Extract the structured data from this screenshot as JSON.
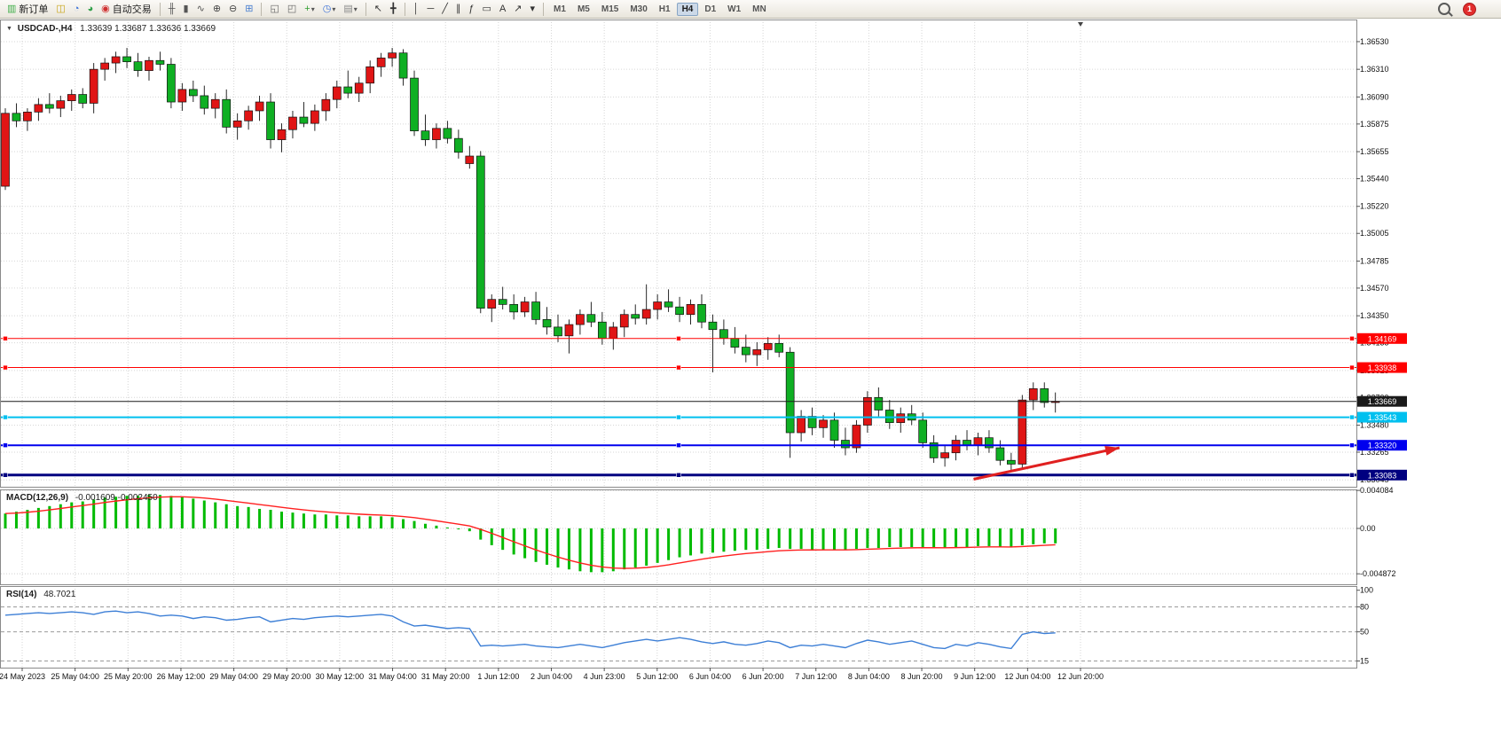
{
  "icons": {
    "symbol_dropdown": "▼",
    "dropdown_arrow": "▾"
  },
  "toolbar": {
    "notification_count": "1",
    "active_timeframe": "H4",
    "timeframes": [
      "M1",
      "M5",
      "M15",
      "M30",
      "H1",
      "H4",
      "D1",
      "W1",
      "MN"
    ],
    "items": [
      {
        "name": "new-order-button",
        "type": "button",
        "glyph": "▥",
        "glyph_color": "#3fae49",
        "label": "新订单"
      },
      {
        "name": "charts-grid-button",
        "type": "button",
        "glyph": "◫",
        "glyph_color": "#c8a416"
      },
      {
        "name": "market-watch-button",
        "type": "button",
        "glyph": "◔",
        "glyph_color": "#3a6fd8"
      },
      {
        "name": "community-button",
        "type": "button",
        "glyph": "◕",
        "glyph_color": "#31a04a"
      },
      {
        "name": "auto-trading-button",
        "type": "button",
        "glyph": "◉",
        "glyph_color": "#d03030",
        "label": "自动交易"
      },
      {
        "type": "sep"
      },
      {
        "name": "bars-chart-type-button",
        "type": "button",
        "glyph": "╫",
        "glyph_color": "#555555"
      },
      {
        "name": "candles-chart-type-button",
        "type": "button",
        "glyph": "▮",
        "glyph_color": "#555555"
      },
      {
        "name": "line-chart-type-button",
        "type": "button",
        "glyph": "∿",
        "glyph_color": "#555555"
      },
      {
        "name": "zoom-in-button",
        "type": "button",
        "glyph": "⊕",
        "glyph_color": "#444444"
      },
      {
        "name": "zoom-out-button",
        "type": "button",
        "glyph": "⊖",
        "glyph_color": "#444444"
      },
      {
        "name": "tile-windows-button",
        "type": "button",
        "glyph": "⊞",
        "glyph_color": "#4a7fd0"
      },
      {
        "type": "sep"
      },
      {
        "name": "auto-scroll-button",
        "type": "button",
        "glyph": "◱",
        "glyph_color": "#666666"
      },
      {
        "name": "chart-shift-button",
        "type": "button",
        "glyph": "◰",
        "glyph_color": "#666666"
      },
      {
        "name": "indicators-button",
        "type": "button",
        "glyph": "+",
        "glyph_color": "#2f9e2f",
        "dropdown": true
      },
      {
        "name": "periods-button",
        "type": "button",
        "glyph": "◷",
        "glyph_color": "#3a6fd8",
        "dropdown": true
      },
      {
        "name": "templates-button",
        "type": "button",
        "glyph": "▤",
        "glyph_color": "#888888",
        "dropdown": true
      },
      {
        "type": "sep"
      },
      {
        "name": "cursor-button",
        "type": "button",
        "glyph": "↖",
        "glyph_color": "#333333"
      },
      {
        "name": "crosshair-button",
        "type": "button",
        "glyph": "╋",
        "glyph_color": "#333333"
      },
      {
        "type": "sep"
      },
      {
        "name": "vertical-line-button",
        "type": "button",
        "glyph": "│",
        "glyph_color": "#333333"
      },
      {
        "name": "horizontal-line-button",
        "type": "button",
        "glyph": "─",
        "glyph_color": "#333333"
      },
      {
        "name": "trendline-button",
        "type": "button",
        "glyph": "╱",
        "glyph_color": "#333333"
      },
      {
        "name": "channel-button",
        "type": "button",
        "glyph": "∥",
        "glyph_color": "#333333"
      },
      {
        "name": "fibonacci-button",
        "type": "button",
        "glyph": "ƒ",
        "glyph_color": "#333333"
      },
      {
        "name": "shapes-button",
        "type": "button",
        "glyph": "▭",
        "glyph_color": "#333333"
      },
      {
        "name": "text-button",
        "type": "button",
        "glyph": "A",
        "glyph_color": "#333333"
      },
      {
        "name": "arrows-button",
        "type": "button",
        "glyph": "↗",
        "glyph_color": "#333333"
      },
      {
        "name": "objects-dropdown-button",
        "type": "button",
        "glyph": "▾",
        "glyph_color": "#333333"
      },
      {
        "type": "sep"
      },
      {
        "type": "timeframes"
      }
    ]
  },
  "chart_data": [
    {
      "type": "candlestick",
      "title": "USDCAD-,H4",
      "ohlc_display": "1.33639 1.33687 1.33636 1.33669",
      "up_color": "#e01515",
      "down_color": "#0faf23",
      "ylim": [
        1.3299,
        1.36706
      ],
      "y_axis_labels": [
        "1.36530",
        "1.36310",
        "1.36090",
        "1.35875",
        "1.35655",
        "1.35440",
        "1.35220",
        "1.35005",
        "1.34785",
        "1.34570",
        "1.34350",
        "1.34135",
        "1.33915",
        "1.33700",
        "1.33480",
        "1.33265",
        "1.33045"
      ],
      "x_labels": [
        "24 May 2023",
        "25 May 04:00",
        "25 May 20:00",
        "26 May 12:00",
        "29 May 04:00",
        "29 May 20:00",
        "30 May 12:00",
        "31 May 04:00",
        "31 May 20:00",
        "1 Jun 12:00",
        "2 Jun 04:00",
        "4 Jun 23:00",
        "5 Jun 12:00",
        "6 Jun 04:00",
        "6 Jun 20:00",
        "7 Jun 12:00",
        "8 Jun 04:00",
        "8 Jun 20:00",
        "9 Jun 12:00",
        "12 Jun 04:00",
        "12 Jun 20:00"
      ],
      "hlines": [
        {
          "label": "1.34169",
          "price": 1.34169,
          "color": "#ff0000",
          "width": 1,
          "handles": true
        },
        {
          "label": "1.33938",
          "price": 1.33938,
          "color": "#ff0000",
          "width": 1,
          "handles": true
        },
        {
          "label": "1.33669",
          "price": 1.33669,
          "color": "#1a1a1a",
          "width": 1,
          "handles": false,
          "role": "current-price"
        },
        {
          "label": "1.33543",
          "price": 1.33543,
          "color": "#00c0ef",
          "width": 2,
          "handles": true
        },
        {
          "label": "1.33320",
          "price": 1.3332,
          "color": "#0000ee",
          "width": 2,
          "handles": true
        },
        {
          "label": "1.33083",
          "price": 1.33083,
          "color": "#000080",
          "width": 3,
          "handles": true
        }
      ],
      "arrow": {
        "from_index": 87.6,
        "from_price": 1.3305,
        "to_index": 100.8,
        "to_price": 1.333,
        "color": "#e02020"
      },
      "candles": [
        [
          1.3538,
          1.36,
          1.3535,
          1.3596
        ],
        [
          1.3596,
          1.3604,
          1.3585,
          1.359
        ],
        [
          1.359,
          1.36,
          1.3582,
          1.3597
        ],
        [
          1.3597,
          1.3608,
          1.359,
          1.3603
        ],
        [
          1.3603,
          1.3612,
          1.3596,
          1.36
        ],
        [
          1.36,
          1.361,
          1.3593,
          1.3606
        ],
        [
          1.3606,
          1.3615,
          1.3598,
          1.3611
        ],
        [
          1.3611,
          1.3616,
          1.36,
          1.3604
        ],
        [
          1.3604,
          1.3636,
          1.3596,
          1.3631
        ],
        [
          1.3631,
          1.364,
          1.3622,
          1.3636
        ],
        [
          1.3636,
          1.3645,
          1.3628,
          1.3641
        ],
        [
          1.3641,
          1.3648,
          1.3632,
          1.3637
        ],
        [
          1.3637,
          1.3644,
          1.3625,
          1.363
        ],
        [
          1.363,
          1.3641,
          1.3622,
          1.3638
        ],
        [
          1.3638,
          1.3645,
          1.363,
          1.3635
        ],
        [
          1.3635,
          1.364,
          1.36,
          1.3605
        ],
        [
          1.3605,
          1.362,
          1.3598,
          1.3615
        ],
        [
          1.3615,
          1.3622,
          1.3605,
          1.361
        ],
        [
          1.361,
          1.3618,
          1.3595,
          1.36
        ],
        [
          1.36,
          1.3612,
          1.3592,
          1.3607
        ],
        [
          1.3607,
          1.3615,
          1.358,
          1.3585
        ],
        [
          1.3585,
          1.3596,
          1.3575,
          1.359
        ],
        [
          1.359,
          1.3602,
          1.3583,
          1.3598
        ],
        [
          1.3598,
          1.361,
          1.359,
          1.3605
        ],
        [
          1.3605,
          1.3612,
          1.3568,
          1.3575
        ],
        [
          1.3575,
          1.3588,
          1.3565,
          1.3583
        ],
        [
          1.3583,
          1.3598,
          1.3576,
          1.3593
        ],
        [
          1.3593,
          1.3605,
          1.3585,
          1.3588
        ],
        [
          1.3588,
          1.3603,
          1.3582,
          1.3598
        ],
        [
          1.3598,
          1.3612,
          1.359,
          1.3607
        ],
        [
          1.3607,
          1.3622,
          1.36,
          1.3617
        ],
        [
          1.3617,
          1.363,
          1.3608,
          1.3612
        ],
        [
          1.3612,
          1.3625,
          1.3605,
          1.362
        ],
        [
          1.362,
          1.3638,
          1.3612,
          1.3633
        ],
        [
          1.3633,
          1.3644,
          1.3625,
          1.364
        ],
        [
          1.364,
          1.3648,
          1.3633,
          1.3644
        ],
        [
          1.3644,
          1.3647,
          1.3618,
          1.3624
        ],
        [
          1.3624,
          1.363,
          1.3578,
          1.3582
        ],
        [
          1.3582,
          1.3595,
          1.357,
          1.3575
        ],
        [
          1.3575,
          1.3588,
          1.3568,
          1.3584
        ],
        [
          1.3584,
          1.359,
          1.3572,
          1.3576
        ],
        [
          1.3576,
          1.3583,
          1.356,
          1.3565
        ],
        [
          1.3556,
          1.357,
          1.3552,
          1.3562
        ],
        [
          1.3562,
          1.3566,
          1.3437,
          1.3441
        ],
        [
          1.3441,
          1.3452,
          1.343,
          1.3448
        ],
        [
          1.3448,
          1.3458,
          1.344,
          1.3444
        ],
        [
          1.3444,
          1.3452,
          1.3432,
          1.3438
        ],
        [
          1.3438,
          1.345,
          1.3434,
          1.3446
        ],
        [
          1.3446,
          1.3454,
          1.3428,
          1.3432
        ],
        [
          1.3432,
          1.3442,
          1.342,
          1.3426
        ],
        [
          1.3426,
          1.3436,
          1.3414,
          1.3419
        ],
        [
          1.3419,
          1.3432,
          1.3405,
          1.3428
        ],
        [
          1.3428,
          1.344,
          1.342,
          1.3436
        ],
        [
          1.3436,
          1.3446,
          1.3426,
          1.343
        ],
        [
          1.343,
          1.3438,
          1.3412,
          1.3417
        ],
        [
          1.3417,
          1.343,
          1.3408,
          1.3426
        ],
        [
          1.3426,
          1.344,
          1.3418,
          1.3436
        ],
        [
          1.3436,
          1.3444,
          1.3428,
          1.3433
        ],
        [
          1.3433,
          1.346,
          1.3428,
          1.344
        ],
        [
          1.344,
          1.3452,
          1.3432,
          1.3446
        ],
        [
          1.3446,
          1.3456,
          1.3438,
          1.3442
        ],
        [
          1.3442,
          1.345,
          1.343,
          1.3436
        ],
        [
          1.3436,
          1.3448,
          1.3428,
          1.3444
        ],
        [
          1.3444,
          1.3452,
          1.3425,
          1.343
        ],
        [
          1.343,
          1.3436,
          1.339,
          1.3424
        ],
        [
          1.3424,
          1.3432,
          1.3412,
          1.3417
        ],
        [
          1.3417,
          1.3426,
          1.3405,
          1.341
        ],
        [
          1.341,
          1.342,
          1.3398,
          1.3404
        ],
        [
          1.3404,
          1.3414,
          1.3395,
          1.3408
        ],
        [
          1.3408,
          1.3418,
          1.34,
          1.3413
        ],
        [
          1.3413,
          1.342,
          1.3402,
          1.3406
        ],
        [
          1.3406,
          1.341,
          1.3322,
          1.3342
        ],
        [
          1.3342,
          1.336,
          1.3335,
          1.3355
        ],
        [
          1.3355,
          1.3362,
          1.334,
          1.3346
        ],
        [
          1.3346,
          1.3356,
          1.3338,
          1.3352
        ],
        [
          1.3352,
          1.3358,
          1.333,
          1.3336
        ],
        [
          1.3336,
          1.3346,
          1.3324,
          1.333
        ],
        [
          1.333,
          1.3352,
          1.3326,
          1.3348
        ],
        [
          1.3348,
          1.3375,
          1.3342,
          1.337
        ],
        [
          1.337,
          1.3378,
          1.3355,
          1.336
        ],
        [
          1.336,
          1.3368,
          1.3345,
          1.335
        ],
        [
          1.335,
          1.3362,
          1.3342,
          1.3357
        ],
        [
          1.3357,
          1.3364,
          1.3348,
          1.3352
        ],
        [
          1.3352,
          1.3358,
          1.333,
          1.3334
        ],
        [
          1.3334,
          1.334,
          1.3318,
          1.3322
        ],
        [
          1.3322,
          1.3332,
          1.3315,
          1.3326
        ],
        [
          1.3326,
          1.334,
          1.332,
          1.3336
        ],
        [
          1.3336,
          1.3344,
          1.3328,
          1.3332
        ],
        [
          1.3332,
          1.3342,
          1.3324,
          1.3338
        ],
        [
          1.3338,
          1.3344,
          1.3326,
          1.333
        ],
        [
          1.333,
          1.3336,
          1.3316,
          1.332
        ],
        [
          1.332,
          1.3326,
          1.3312,
          1.3317
        ],
        [
          1.3317,
          1.3372,
          1.3314,
          1.3368
        ],
        [
          1.3368,
          1.3382,
          1.336,
          1.3377
        ],
        [
          1.3377,
          1.3382,
          1.3362,
          1.3366
        ],
        [
          1.3366,
          1.3374,
          1.3358,
          1.33669
        ]
      ]
    },
    {
      "type": "bar",
      "name": "MACD(12,26,9)",
      "values_display": "-0.001609 -0.002450",
      "bar_color": "#00bb00",
      "signal_color": "#ff2020",
      "ylim": [
        -0.006,
        0.00419
      ],
      "axis_labels": [
        "0.004084",
        "0.00",
        "-0.004872"
      ],
      "values": [
        0.0016,
        0.0018,
        0.002,
        0.0022,
        0.0024,
        0.0026,
        0.0028,
        0.0029,
        0.0031,
        0.0033,
        0.0034,
        0.0035,
        0.0035,
        0.0036,
        0.0036,
        0.0035,
        0.0034,
        0.0032,
        0.003,
        0.0028,
        0.0026,
        0.0024,
        0.0023,
        0.0021,
        0.002,
        0.0018,
        0.0017,
        0.0016,
        0.0015,
        0.0015,
        0.0014,
        0.0014,
        0.0013,
        0.0013,
        0.0013,
        0.0012,
        0.001,
        0.0008,
        0.0005,
        0.0003,
        0.0001,
        -0.0001,
        -0.0003,
        -0.0012,
        -0.0018,
        -0.0023,
        -0.0028,
        -0.0032,
        -0.0036,
        -0.0039,
        -0.0042,
        -0.0044,
        -0.0046,
        -0.0047,
        -0.0047,
        -0.0046,
        -0.0044,
        -0.0042,
        -0.004,
        -0.0037,
        -0.0034,
        -0.0031,
        -0.0029,
        -0.0027,
        -0.0026,
        -0.0025,
        -0.0024,
        -0.0023,
        -0.0023,
        -0.0022,
        -0.0021,
        -0.0022,
        -0.0022,
        -0.0023,
        -0.0023,
        -0.0023,
        -0.0023,
        -0.0022,
        -0.0021,
        -0.0021,
        -0.002,
        -0.002,
        -0.002,
        -0.002,
        -0.0021,
        -0.0021,
        -0.002,
        -0.002,
        -0.0019,
        -0.0019,
        -0.002,
        -0.002,
        -0.0018,
        -0.0017,
        -0.0016,
        -0.0016
      ]
    },
    {
      "type": "line",
      "name": "RSI(14)",
      "value_display": "48.7021",
      "line_color": "#3d7fd6",
      "ylim": [
        7,
        105
      ],
      "axis_labels": [
        "100",
        "80",
        "50",
        "15"
      ],
      "levels": [
        80,
        50,
        15
      ],
      "values": [
        70,
        71,
        72,
        73,
        72,
        73,
        74,
        73,
        71,
        74,
        75,
        73,
        74,
        72,
        69,
        70,
        69,
        66,
        68,
        67,
        64,
        65,
        67,
        68,
        62,
        64,
        66,
        65,
        67,
        68,
        69,
        68,
        69,
        70,
        71,
        69,
        62,
        57,
        58,
        56,
        54,
        55,
        54,
        33,
        34,
        33,
        34,
        35,
        33,
        32,
        31,
        33,
        35,
        33,
        31,
        34,
        37,
        39,
        41,
        39,
        41,
        43,
        41,
        38,
        36,
        38,
        35,
        34,
        36,
        39,
        37,
        31,
        34,
        33,
        35,
        33,
        31,
        36,
        40,
        38,
        35,
        37,
        39,
        35,
        31,
        30,
        35,
        33,
        37,
        35,
        32,
        30,
        47,
        50,
        48,
        48.7
      ]
    }
  ]
}
